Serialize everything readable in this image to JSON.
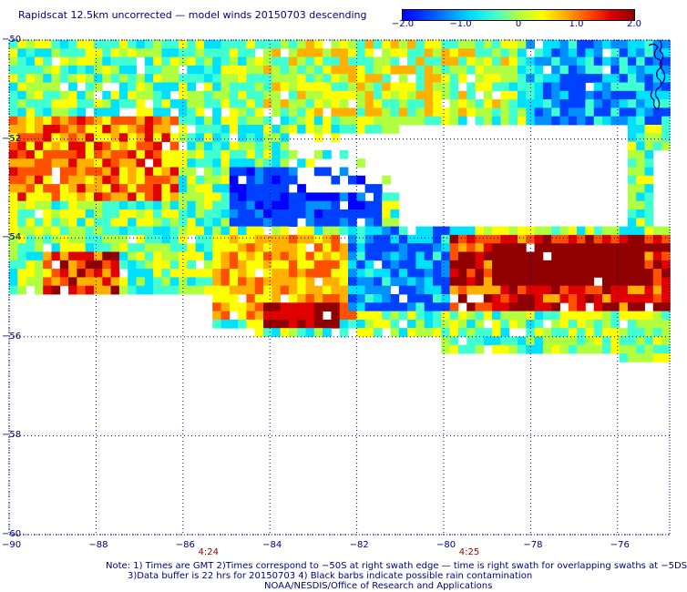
{
  "title": "Rapidscat 12.5km uncorrected — model winds 20150703 descending",
  "colorbar": {
    "colors": [
      "#0000ff",
      "#0040ff",
      "#0090ff",
      "#00e0ff",
      "#40ffd0",
      "#b0ff40",
      "#ffff00",
      "#ffb000",
      "#ff5000",
      "#e00000",
      "#900000"
    ],
    "min": -2.0,
    "max": 2.0,
    "ticks": [
      {
        "value": -2.0,
        "label": "−2.0"
      },
      {
        "value": -1.0,
        "label": "−1.0"
      },
      {
        "value": 0,
        "label": "0"
      },
      {
        "value": 1.0,
        "label": "1.0"
      },
      {
        "value": 2.0,
        "label": "2.0"
      }
    ]
  },
  "map": {
    "lon_range": [
      -90,
      -74.8
    ],
    "lat_range": [
      -60,
      -50
    ],
    "lon_ticks": [
      {
        "value": -90,
        "label": "−90"
      },
      {
        "value": -88,
        "label": "−88"
      },
      {
        "value": -86,
        "label": "−86"
      },
      {
        "value": -84,
        "label": "−84"
      },
      {
        "value": -82,
        "label": "−82"
      },
      {
        "value": -80,
        "label": "−80"
      },
      {
        "value": -78,
        "label": "−78"
      },
      {
        "value": -76,
        "label": "−76"
      }
    ],
    "lat_ticks": [
      {
        "value": -50,
        "label": "−50"
      },
      {
        "value": -52,
        "label": "−52"
      },
      {
        "value": -54,
        "label": "−54"
      },
      {
        "value": -56,
        "label": "−56"
      },
      {
        "value": -58,
        "label": "−58"
      },
      {
        "value": -60,
        "label": "−60"
      }
    ],
    "grid": true,
    "coastline_color": "#000080"
  },
  "time_labels": [
    {
      "lon": -86,
      "label": "4:24"
    },
    {
      "lon": -80,
      "label": "4:25"
    }
  ],
  "notes": {
    "line1": "Note: 1) Times are GMT 2)Times correspond to −50S at right swath edge — time is right swath for overlapping swaths at −5DS",
    "line2": "3)Data buffer is 22 hrs for 20150703 4) Black barbs indicate possible rain contamination",
    "line3": "NOAA/NESDIS/Office of Research and Applications"
  }
}
